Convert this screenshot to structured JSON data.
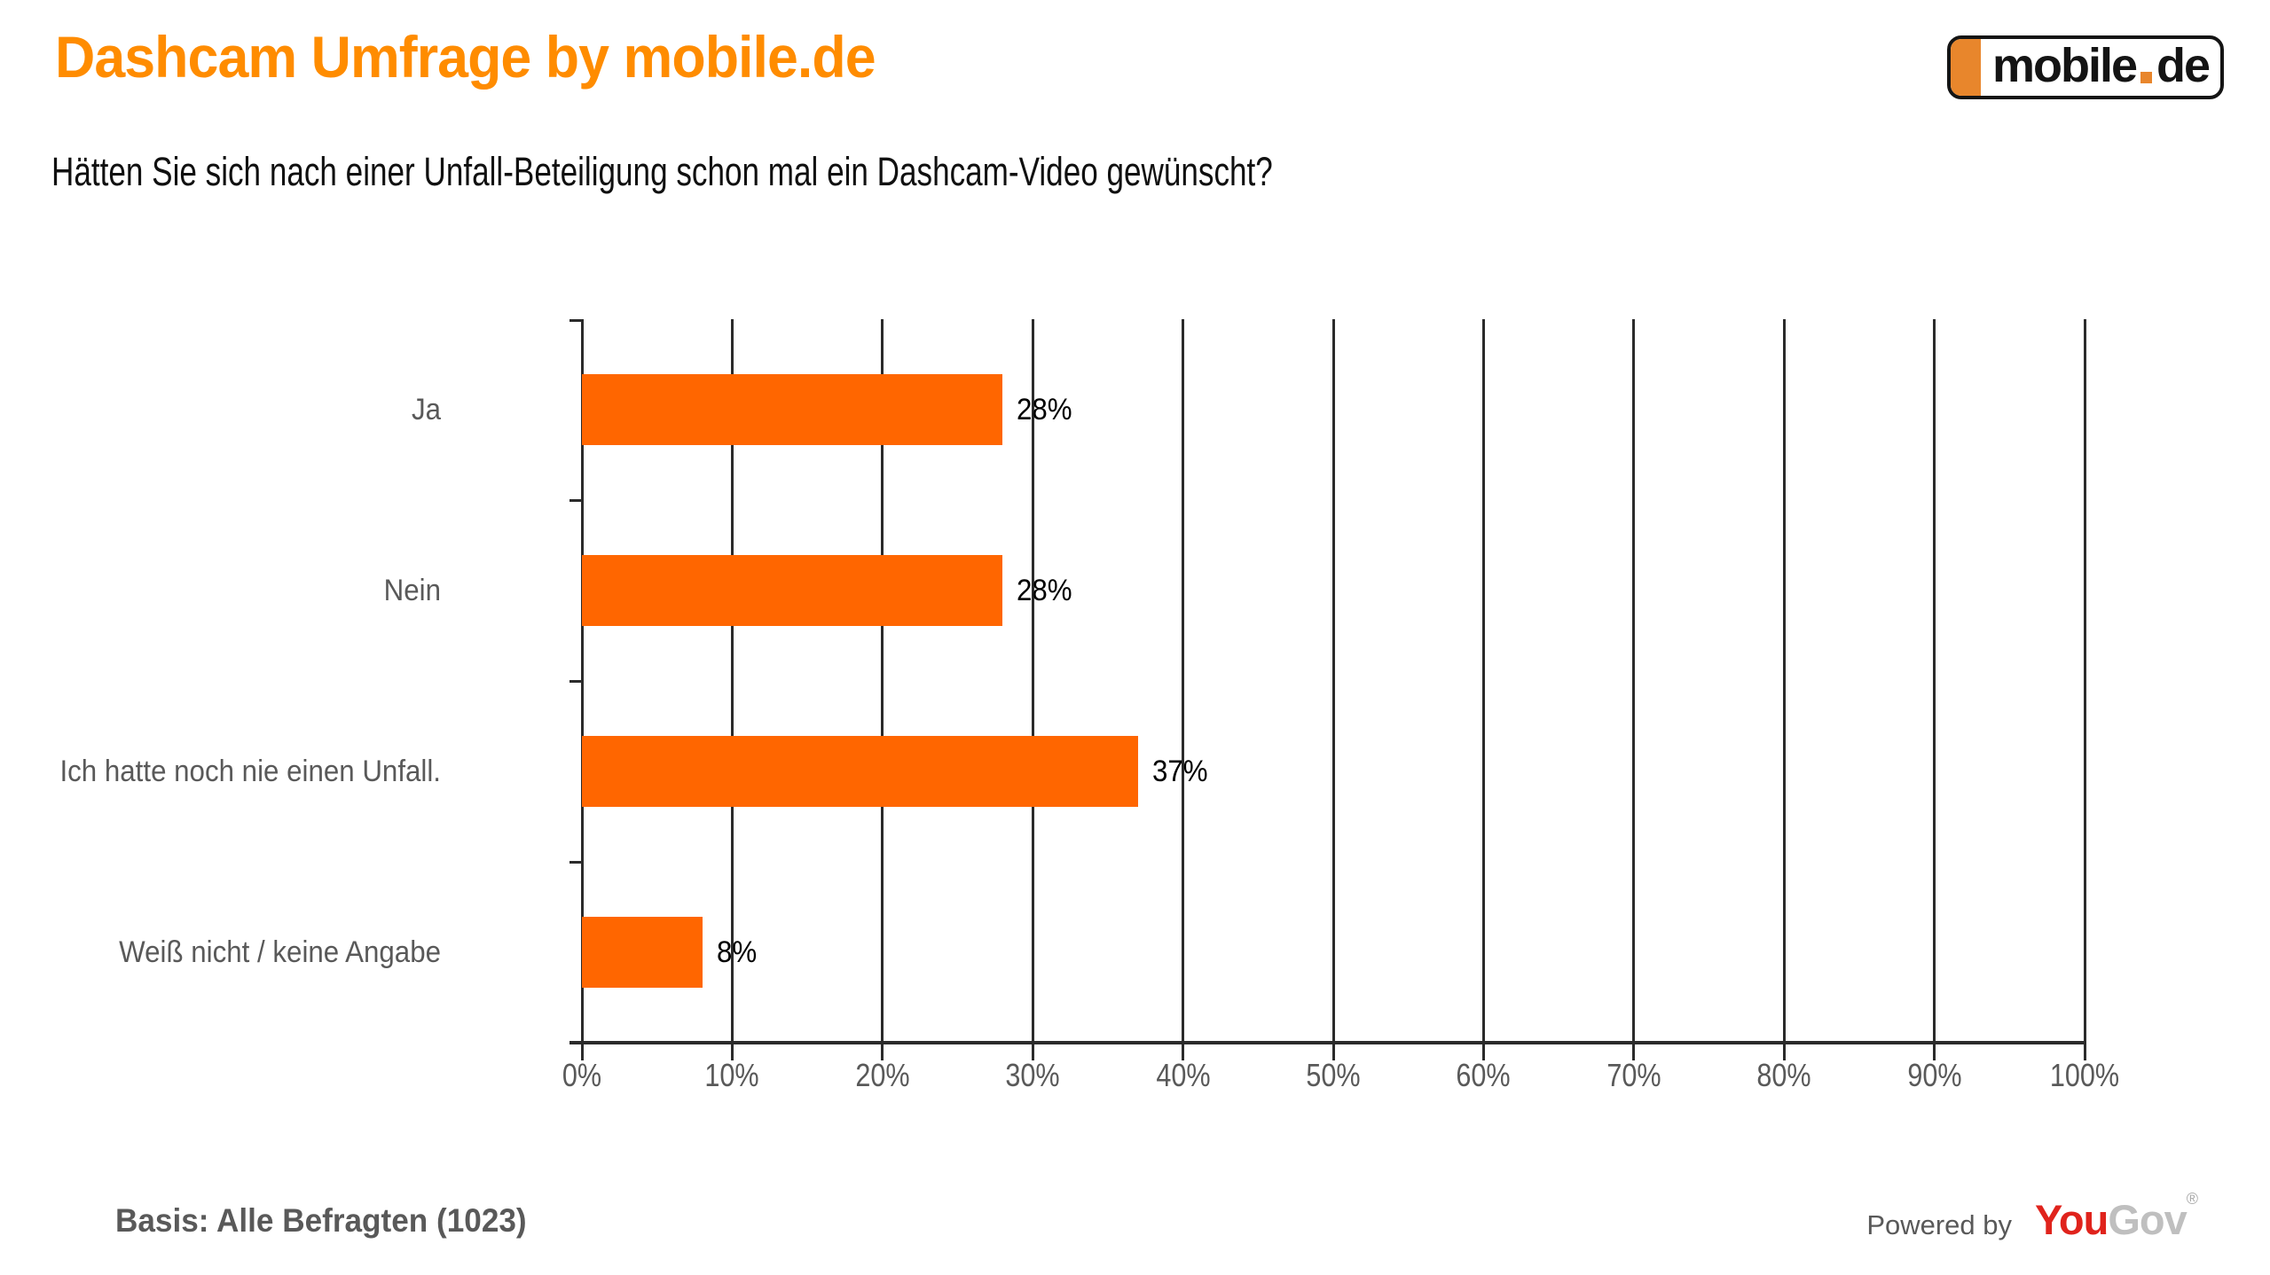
{
  "header": {
    "title": "Dashcam Umfrage by mobile.de",
    "question": "Hätten Sie sich nach einer Unfall-Beteiligung schon mal ein Dashcam-Video gewünscht?",
    "logo": {
      "part1": "mobile",
      "dot": ".",
      "part2": "de"
    }
  },
  "chart_data": {
    "type": "bar",
    "orientation": "horizontal",
    "title": "Hätten Sie sich nach einer Unfall-Beteiligung schon mal ein Dashcam-Video gewünscht?",
    "categories": [
      "Ja",
      "Nein",
      "Ich hatte noch nie einen Unfall.",
      "Weiß nicht / keine Angabe"
    ],
    "values": [
      28,
      28,
      37,
      8
    ],
    "value_labels": [
      "28%",
      "28%",
      "37%",
      "8%"
    ],
    "xlabel": "",
    "ylabel": "",
    "xlim": [
      0,
      100
    ],
    "x_tick_labels": [
      "0%",
      "10%",
      "20%",
      "30%",
      "40%",
      "50%",
      "60%",
      "70%",
      "80%",
      "90%",
      "100%"
    ],
    "grid": true,
    "legend": false,
    "bar_color": "#FF6600",
    "grid_color": "#2B2B2B",
    "label_color": "#595959",
    "value_label_color": "#000000"
  },
  "footer": {
    "basis": "Basis: Alle Befragten (1023)",
    "powered_by": "Powered by",
    "brand": {
      "part1": "You",
      "part2": "Gov",
      "registered": "®"
    }
  },
  "colors": {
    "title_orange": "#FF8C00",
    "bar_orange": "#FF6600",
    "logo_orange": "#E8862C",
    "grid_dark": "#2B2B2B",
    "text_gray": "#595959",
    "yougov_red": "#E0231C",
    "yougov_gray": "#BFBFBF",
    "background": "#FFFFFF"
  }
}
